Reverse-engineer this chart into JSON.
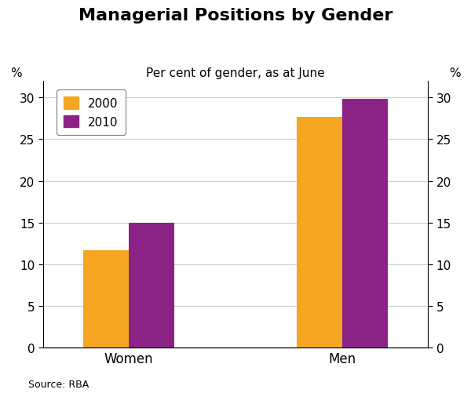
{
  "title": "Managerial Positions by Gender",
  "subtitle": "Per cent of gender, as at June",
  "categories": [
    "Women",
    "Men"
  ],
  "series": {
    "2000": [
      11.7,
      27.7
    ],
    "2010": [
      15.0,
      29.8
    ]
  },
  "colors": {
    "2000": "#F5A623",
    "2010": "#8B2387"
  },
  "ylim": [
    0,
    32
  ],
  "yticks": [
    0,
    5,
    10,
    15,
    20,
    25,
    30
  ],
  "ylabel_left": "%",
  "ylabel_right": "%",
  "source": "Source: RBA",
  "bar_width": 0.32,
  "background_color": "#ffffff",
  "legend_labels": [
    "2000",
    "2010"
  ],
  "title_fontsize": 16,
  "subtitle_fontsize": 11,
  "tick_fontsize": 11,
  "legend_fontsize": 11,
  "source_fontsize": 9,
  "group_centers": [
    1.0,
    2.5
  ]
}
